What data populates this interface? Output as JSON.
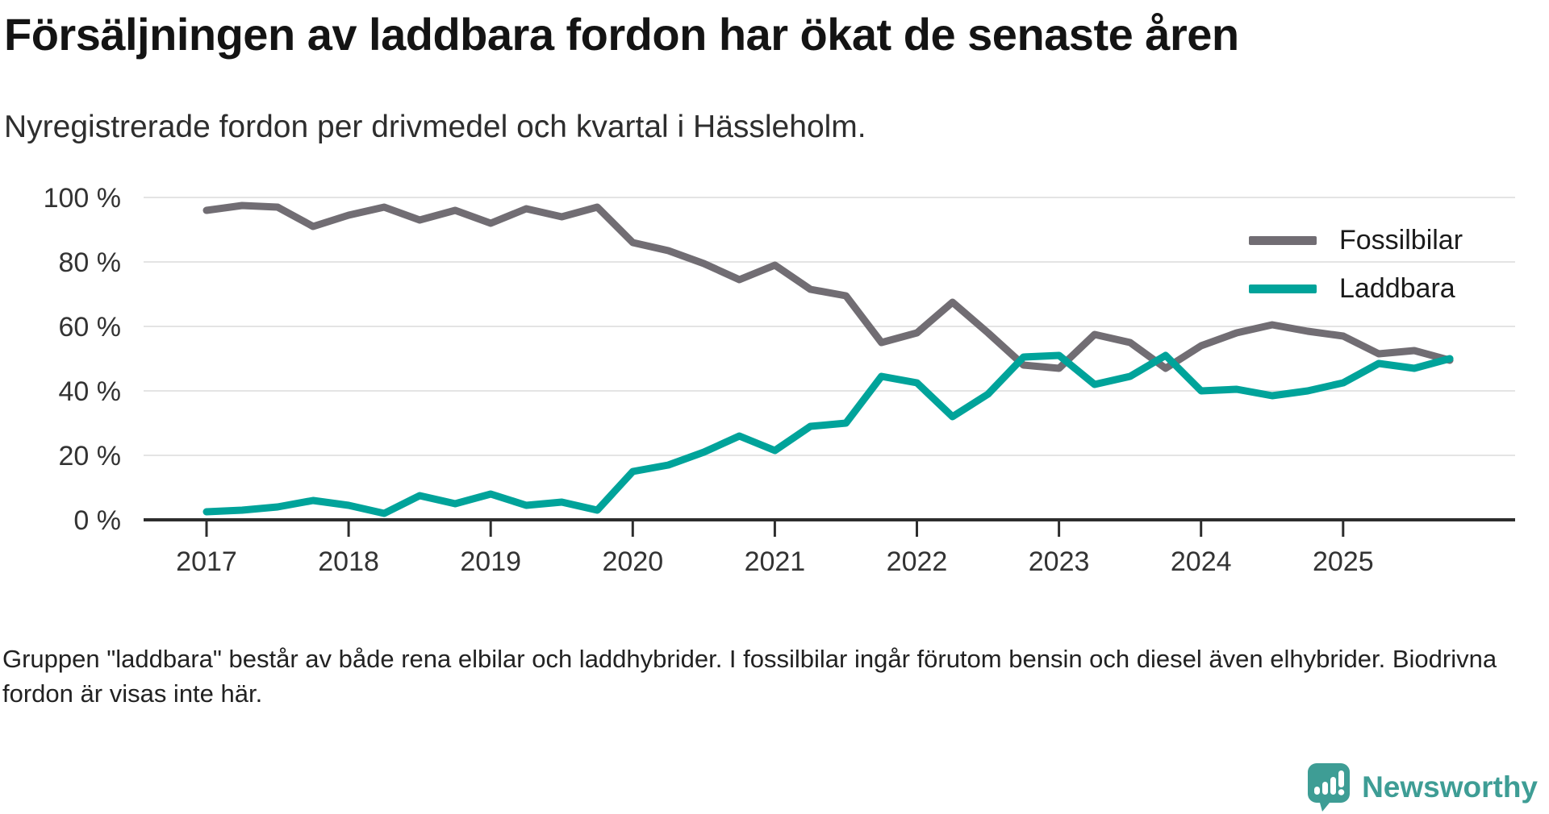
{
  "header": {
    "title": "Försäljningen av laddbara fordon har ökat de senaste åren",
    "subtitle": "Nyregistrerade fordon per drivmedel och kvartal i Hässleholm."
  },
  "chart_data": {
    "type": "line",
    "unit": "%",
    "grid": true,
    "legend_position": "top-right",
    "ylim": [
      0,
      100
    ],
    "y_tick_labels": [
      "0 %",
      "20 %",
      "40 %",
      "60 %",
      "80 %",
      "100 %"
    ],
    "x_tick_labels": [
      "2017",
      "2018",
      "2019",
      "2020",
      "2021",
      "2022",
      "2023",
      "2024",
      "2025"
    ],
    "quarters": [
      "2017 Q1",
      "2017 Q2",
      "2017 Q3",
      "2017 Q4",
      "2018 Q1",
      "2018 Q2",
      "2018 Q3",
      "2018 Q4",
      "2019 Q1",
      "2019 Q2",
      "2019 Q3",
      "2019 Q4",
      "2020 Q1",
      "2020 Q2",
      "2020 Q3",
      "2020 Q4",
      "2021 Q1",
      "2021 Q2",
      "2021 Q3",
      "2021 Q4",
      "2022 Q1",
      "2022 Q2",
      "2022 Q3",
      "2022 Q4",
      "2023 Q1",
      "2023 Q2",
      "2023 Q3",
      "2023 Q4",
      "2024 Q1",
      "2024 Q2",
      "2024 Q3",
      "2024 Q4",
      "2025 Q1",
      "2025 Q2",
      "2025 Q3",
      "2025 Q4"
    ],
    "series": [
      {
        "name": "Fossilbilar",
        "color": "#716d73",
        "values": [
          96,
          97.5,
          97,
          91,
          94.5,
          97,
          93,
          96,
          92,
          96.5,
          94,
          97,
          86,
          83.5,
          79.5,
          74.5,
          79,
          71.5,
          69.5,
          55,
          58,
          67.5,
          58,
          48,
          47,
          57.5,
          55,
          47,
          54,
          58,
          60.5,
          58.5,
          57,
          51.5,
          52.5,
          49.5
        ]
      },
      {
        "name": "Laddbara",
        "color": "#00a39a",
        "values": [
          2.5,
          3,
          4,
          6,
          4.5,
          2,
          7.5,
          5,
          8,
          4.5,
          5.5,
          3,
          15,
          17,
          21,
          26,
          21.5,
          29,
          30,
          44.5,
          42.5,
          32,
          39,
          50.5,
          51,
          42,
          44.5,
          51,
          40,
          40.5,
          38.5,
          40,
          42.5,
          48.5,
          47,
          50
        ]
      }
    ]
  },
  "colors": {
    "axis": "#2d2d2d",
    "gridline": "#e4e4e4",
    "tick_label": "#333333",
    "brand_teal": "#3e9d95"
  },
  "footer": {
    "text": "Gruppen \"laddbara\" består av både rena elbilar och laddhybrider. I fossilbilar ingår förutom bensin och diesel även elhybrider. Biodrivna fordon är visas inte här."
  },
  "logo": {
    "text": "Newsworthy"
  }
}
